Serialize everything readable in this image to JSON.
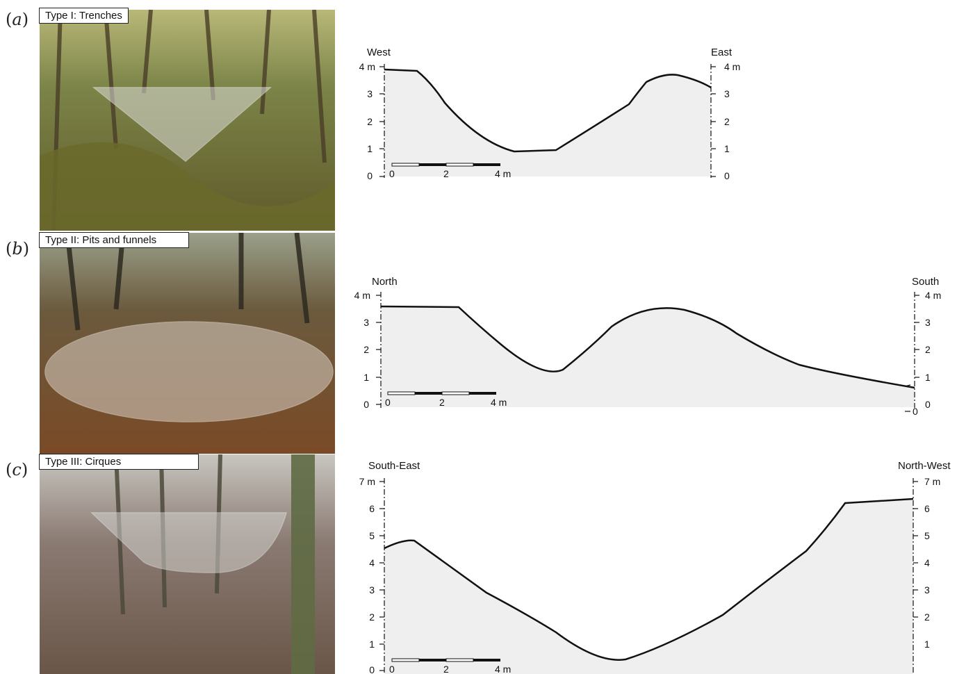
{
  "panels": [
    {
      "label": "a",
      "type_label": "Type I: Trenches",
      "left_direction": "West",
      "right_direction": "East",
      "y_ticks_left": [
        "4 m",
        "3",
        "2",
        "1",
        "0"
      ],
      "y_ticks_right": [
        "4 m",
        "3",
        "2",
        "1",
        "0"
      ],
      "scale_bar_labels": [
        "0",
        "2",
        "4 m"
      ]
    },
    {
      "label": "b",
      "type_label": "Type II: Pits and funnels",
      "left_direction": "North",
      "right_direction": "South",
      "y_ticks_left": [
        "4 m",
        "3",
        "2",
        "1",
        "0"
      ],
      "y_ticks_right": [
        "4 m",
        "3",
        "2",
        "1",
        "0"
      ],
      "extra_right_label": "0",
      "scale_bar_labels": [
        "0",
        "2",
        "4 m"
      ]
    },
    {
      "label": "c",
      "type_label": "Type III: Cirques",
      "left_direction": "South-East",
      "right_direction": "North-West",
      "y_ticks_left": [
        "7 m",
        "6",
        "5",
        "4",
        "3",
        "2",
        "1",
        "0"
      ],
      "y_ticks_right": [
        "7 m",
        "6",
        "5",
        "4",
        "3",
        "2",
        "1"
      ],
      "scale_bar_labels": [
        "0",
        "2",
        "4 m"
      ]
    }
  ],
  "colors": {
    "profile_fill": "#efefef",
    "profile_line": "#111111",
    "photo_forest_a": "#6f7a3e",
    "photo_forest_b": "#7a6248",
    "photo_forest_c": "#8a7a72"
  }
}
